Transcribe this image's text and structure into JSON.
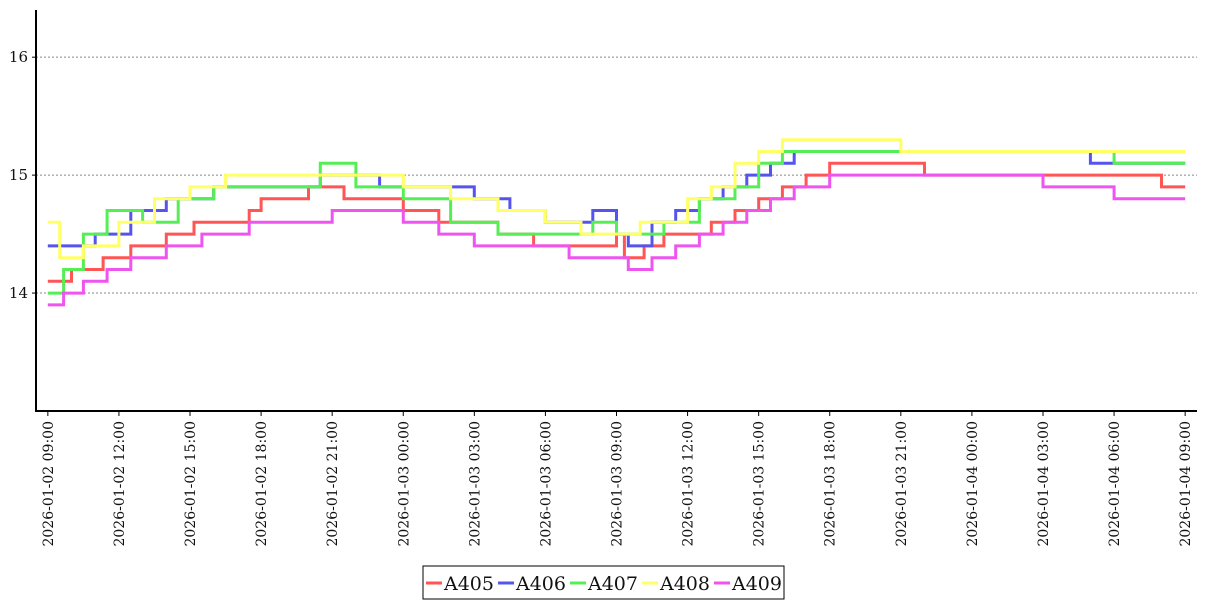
{
  "chart_data": {
    "type": "line",
    "title": "",
    "xlabel": "",
    "ylabel": "",
    "ylim": [
      13.0,
      16.4
    ],
    "y_ticks": [
      14,
      15,
      16
    ],
    "y_tick_labels": [
      "14",
      "15",
      "16"
    ],
    "x_range": [
      "2026-01-02 08:30",
      "2026-01-04 09:30"
    ],
    "x_ticks": [
      "2026-01-02 09:00",
      "2026-01-02 12:00",
      "2026-01-02 15:00",
      "2026-01-02 18:00",
      "2026-01-02 21:00",
      "2026-01-03 00:00",
      "2026-01-03 03:00",
      "2026-01-03 06:00",
      "2026-01-03 09:00",
      "2026-01-03 12:00",
      "2026-01-03 15:00",
      "2026-01-03 18:00",
      "2026-01-03 21:00",
      "2026-01-04 00:00",
      "2026-01-04 03:00",
      "2026-01-04 06:00",
      "2026-01-04 09:00"
    ],
    "x_tick_labels": [
      "2026-01-02 09:00",
      "2026-01-02 12:00",
      "2026-01-02 15:00",
      "2026-01-02 18:00",
      "2026-01-02 21:00",
      "2026-01-03 00:00",
      "2026-01-03 03:00",
      "2026-01-03 06:00",
      "2026-01-03 09:00",
      "2026-01-03 12:00",
      "2026-01-03 15:00",
      "2026-01-03 18:00",
      "2026-01-03 21:00",
      "2026-01-04 00:00",
      "2026-01-04 03:00",
      "2026-01-04 06:00",
      "2026-01-04 09:00"
    ],
    "grid": "horizontal-dotted",
    "legend_position": "bottom-center",
    "step": true,
    "series": [
      {
        "name": "A405",
        "color": "#ff5555",
        "x": [
          "2026-01-02 09:00",
          "2026-01-02 10:00",
          "2026-01-02 11:20",
          "2026-01-02 12:30",
          "2026-01-02 14:00",
          "2026-01-02 15:10",
          "2026-01-02 17:30",
          "2026-01-02 18:00",
          "2026-01-02 20:00",
          "2026-01-02 21:30",
          "2026-01-03 00:00",
          "2026-01-03 01:30",
          "2026-01-03 04:00",
          "2026-01-03 05:30",
          "2026-01-03 09:00",
          "2026-01-03 09:20",
          "2026-01-03 10:10",
          "2026-01-03 11:00",
          "2026-01-03 12:00",
          "2026-01-03 13:00",
          "2026-01-03 14:00",
          "2026-01-03 15:00",
          "2026-01-03 16:00",
          "2026-01-03 17:00",
          "2026-01-03 18:00",
          "2026-01-03 19:30",
          "2026-01-03 21:00",
          "2026-01-03 22:00",
          "2026-01-04 03:00",
          "2026-01-04 04:30",
          "2026-01-04 06:00",
          "2026-01-04 08:00",
          "2026-01-04 09:00"
        ],
        "y": [
          14.1,
          14.2,
          14.3,
          14.4,
          14.5,
          14.6,
          14.7,
          14.8,
          14.9,
          14.8,
          14.7,
          14.6,
          14.5,
          14.4,
          14.5,
          14.3,
          14.4,
          14.5,
          14.5,
          14.6,
          14.7,
          14.8,
          14.9,
          15.0,
          15.1,
          15.1,
          15.1,
          15.0,
          15.0,
          15.0,
          15.0,
          14.9,
          14.9
        ]
      },
      {
        "name": "A406",
        "color": "#5555ee",
        "x": [
          "2026-01-02 09:00",
          "2026-01-02 11:00",
          "2026-01-02 12:30",
          "2026-01-02 14:00",
          "2026-01-02 16:00",
          "2026-01-02 18:00",
          "2026-01-02 20:30",
          "2026-01-02 23:00",
          "2026-01-03 03:00",
          "2026-01-03 04:30",
          "2026-01-03 06:00",
          "2026-01-03 08:00",
          "2026-01-03 09:00",
          "2026-01-03 09:30",
          "2026-01-03 10:30",
          "2026-01-03 11:30",
          "2026-01-03 12:30",
          "2026-01-03 13:30",
          "2026-01-03 14:30",
          "2026-01-03 15:30",
          "2026-01-03 16:30",
          "2026-01-03 18:00",
          "2026-01-03 20:00",
          "2026-01-03 22:00",
          "2026-01-04 00:00",
          "2026-01-04 03:00",
          "2026-01-04 05:00",
          "2026-01-04 07:00",
          "2026-01-04 09:00"
        ],
        "y": [
          14.4,
          14.5,
          14.7,
          14.8,
          14.9,
          14.9,
          15.0,
          14.9,
          14.8,
          14.7,
          14.6,
          14.7,
          14.5,
          14.4,
          14.6,
          14.7,
          14.8,
          14.9,
          15.0,
          15.1,
          15.2,
          15.2,
          15.2,
          15.2,
          15.2,
          15.2,
          15.1,
          15.1,
          15.1
        ]
      },
      {
        "name": "A407",
        "color": "#55ee55",
        "x": [
          "2026-01-02 09:00",
          "2026-01-02 09:40",
          "2026-01-02 10:30",
          "2026-01-02 11:30",
          "2026-01-02 13:00",
          "2026-01-02 14:30",
          "2026-01-02 16:00",
          "2026-01-02 18:00",
          "2026-01-02 20:30",
          "2026-01-02 22:00",
          "2026-01-03 00:00",
          "2026-01-03 02:00",
          "2026-01-03 04:00",
          "2026-01-03 06:00",
          "2026-01-03 08:00",
          "2026-01-03 09:00",
          "2026-01-03 10:00",
          "2026-01-03 11:00",
          "2026-01-03 12:30",
          "2026-01-03 14:00",
          "2026-01-03 15:00",
          "2026-01-03 16:00",
          "2026-01-03 18:00",
          "2026-01-03 21:00",
          "2026-01-04 00:00",
          "2026-01-04 03:00",
          "2026-01-04 06:00",
          "2026-01-04 09:00"
        ],
        "y": [
          14.0,
          14.2,
          14.5,
          14.7,
          14.6,
          14.8,
          14.9,
          14.9,
          15.1,
          14.9,
          14.8,
          14.6,
          14.5,
          14.5,
          14.6,
          14.5,
          14.5,
          14.6,
          14.8,
          14.9,
          15.1,
          15.2,
          15.2,
          15.2,
          15.2,
          15.2,
          15.1,
          15.1
        ]
      },
      {
        "name": "A408",
        "color": "#ffff66",
        "x": [
          "2026-01-02 09:00",
          "2026-01-02 09:30",
          "2026-01-02 10:30",
          "2026-01-02 12:00",
          "2026-01-02 13:30",
          "2026-01-02 15:00",
          "2026-01-02 16:30",
          "2026-01-02 18:00",
          "2026-01-02 21:00",
          "2026-01-03 00:00",
          "2026-01-03 02:00",
          "2026-01-03 04:00",
          "2026-01-03 06:00",
          "2026-01-03 07:30",
          "2026-01-03 09:00",
          "2026-01-03 10:00",
          "2026-01-03 11:00",
          "2026-01-03 12:00",
          "2026-01-03 13:00",
          "2026-01-03 14:00",
          "2026-01-03 15:00",
          "2026-01-03 16:00",
          "2026-01-03 18:00",
          "2026-01-03 21:00",
          "2026-01-04 00:00",
          "2026-01-04 03:00",
          "2026-01-04 06:00",
          "2026-01-04 09:00"
        ],
        "y": [
          14.6,
          14.3,
          14.4,
          14.6,
          14.8,
          14.9,
          15.0,
          15.0,
          15.0,
          14.9,
          14.8,
          14.7,
          14.6,
          14.5,
          14.5,
          14.6,
          14.6,
          14.8,
          14.9,
          15.1,
          15.2,
          15.3,
          15.3,
          15.2,
          15.2,
          15.2,
          15.2,
          15.2
        ]
      },
      {
        "name": "A409",
        "color": "#ee55ee",
        "x": [
          "2026-01-02 09:00",
          "2026-01-02 09:40",
          "2026-01-02 10:30",
          "2026-01-02 11:30",
          "2026-01-02 12:30",
          "2026-01-02 14:00",
          "2026-01-02 15:30",
          "2026-01-02 17:30",
          "2026-01-02 21:00",
          "2026-01-03 00:00",
          "2026-01-03 01:30",
          "2026-01-03 03:00",
          "2026-01-03 05:30",
          "2026-01-03 07:00",
          "2026-01-03 09:00",
          "2026-01-03 09:30",
          "2026-01-03 10:30",
          "2026-01-03 11:30",
          "2026-01-03 12:30",
          "2026-01-03 13:30",
          "2026-01-03 14:30",
          "2026-01-03 15:30",
          "2026-01-03 16:30",
          "2026-01-03 18:00",
          "2026-01-03 21:00",
          "2026-01-04 00:00",
          "2026-01-04 03:00",
          "2026-01-04 04:30",
          "2026-01-04 06:00",
          "2026-01-04 07:30",
          "2026-01-04 09:00"
        ],
        "y": [
          13.9,
          14.0,
          14.1,
          14.2,
          14.3,
          14.4,
          14.5,
          14.6,
          14.7,
          14.6,
          14.5,
          14.4,
          14.4,
          14.3,
          14.3,
          14.2,
          14.3,
          14.4,
          14.5,
          14.6,
          14.7,
          14.8,
          14.9,
          15.0,
          15.0,
          15.0,
          14.9,
          14.9,
          14.8,
          14.8,
          14.8
        ]
      }
    ]
  }
}
